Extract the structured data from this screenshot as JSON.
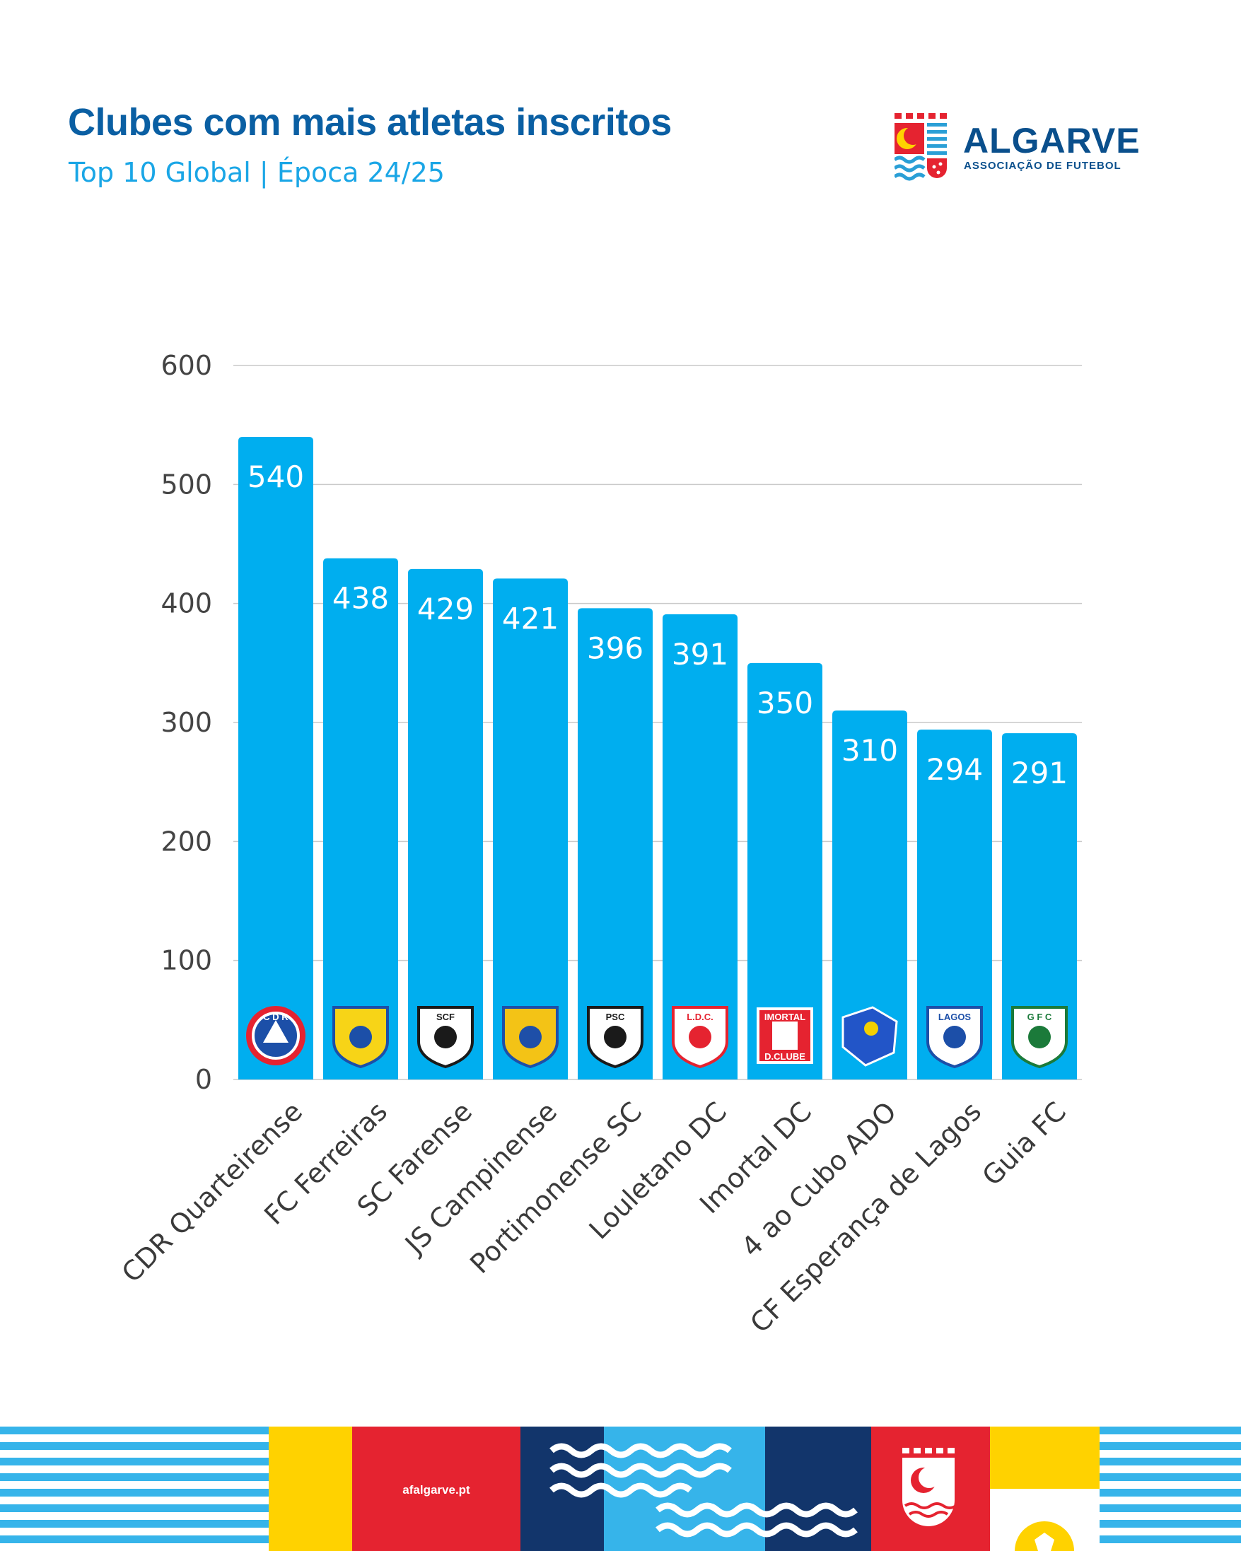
{
  "header": {
    "title": "Clubes com mais atletas inscritos",
    "subtitle": "Top 10 Global | Época 24/25"
  },
  "logo": {
    "name": "ALGARVE",
    "tagline": "ASSOCIAÇÃO DE FUTEBOL"
  },
  "footer": {
    "website": "afalgarve.pt"
  },
  "colors": {
    "bar": "#00aeef",
    "title": "#0a5fa3",
    "subtitle": "#1aa6e6",
    "footer_red": "#e52330",
    "footer_yellow": "#ffd200",
    "footer_navy": "#12356b",
    "footer_light_blue": "#36b4ea"
  },
  "chart_data": {
    "type": "bar",
    "title": "Clubes com mais atletas inscritos",
    "subtitle": "Top 10 Global | Época 24/25",
    "xlabel": "",
    "ylabel": "",
    "categories": [
      "CDR Quarteirense",
      "FC Ferreiras",
      "SC Farense",
      "JS Campinense",
      "Portimonense SC",
      "Louletano DC",
      "Imortal DC",
      "4 ao Cubo ADO",
      "CF Esperança de Lagos",
      "Guia FC"
    ],
    "values": [
      540,
      438,
      429,
      421,
      396,
      391,
      350,
      310,
      294,
      291
    ],
    "crests": [
      {
        "icon": "quarteirense-crest-icon",
        "text": "C D R"
      },
      {
        "icon": "ferreiras-crest-icon",
        "text": ""
      },
      {
        "icon": "farense-crest-icon",
        "text": "SCF"
      },
      {
        "icon": "campinense-crest-icon",
        "text": ""
      },
      {
        "icon": "portimonense-crest-icon",
        "text": "PSC"
      },
      {
        "icon": "louletano-crest-icon",
        "text": "L.D.C."
      },
      {
        "icon": "imortal-crest-icon",
        "text": "IMORTAL|D.CLUBE"
      },
      {
        "icon": "quatro-ao-cubo-crest-icon",
        "text": ""
      },
      {
        "icon": "esperanca-lagos-crest-icon",
        "text": "LAGOS"
      },
      {
        "icon": "guia-crest-icon",
        "text": "G F C"
      }
    ],
    "yticks": [
      0,
      100,
      200,
      300,
      400,
      500,
      600
    ],
    "ylim": [
      0,
      600
    ],
    "grid": true,
    "legend": "none"
  }
}
